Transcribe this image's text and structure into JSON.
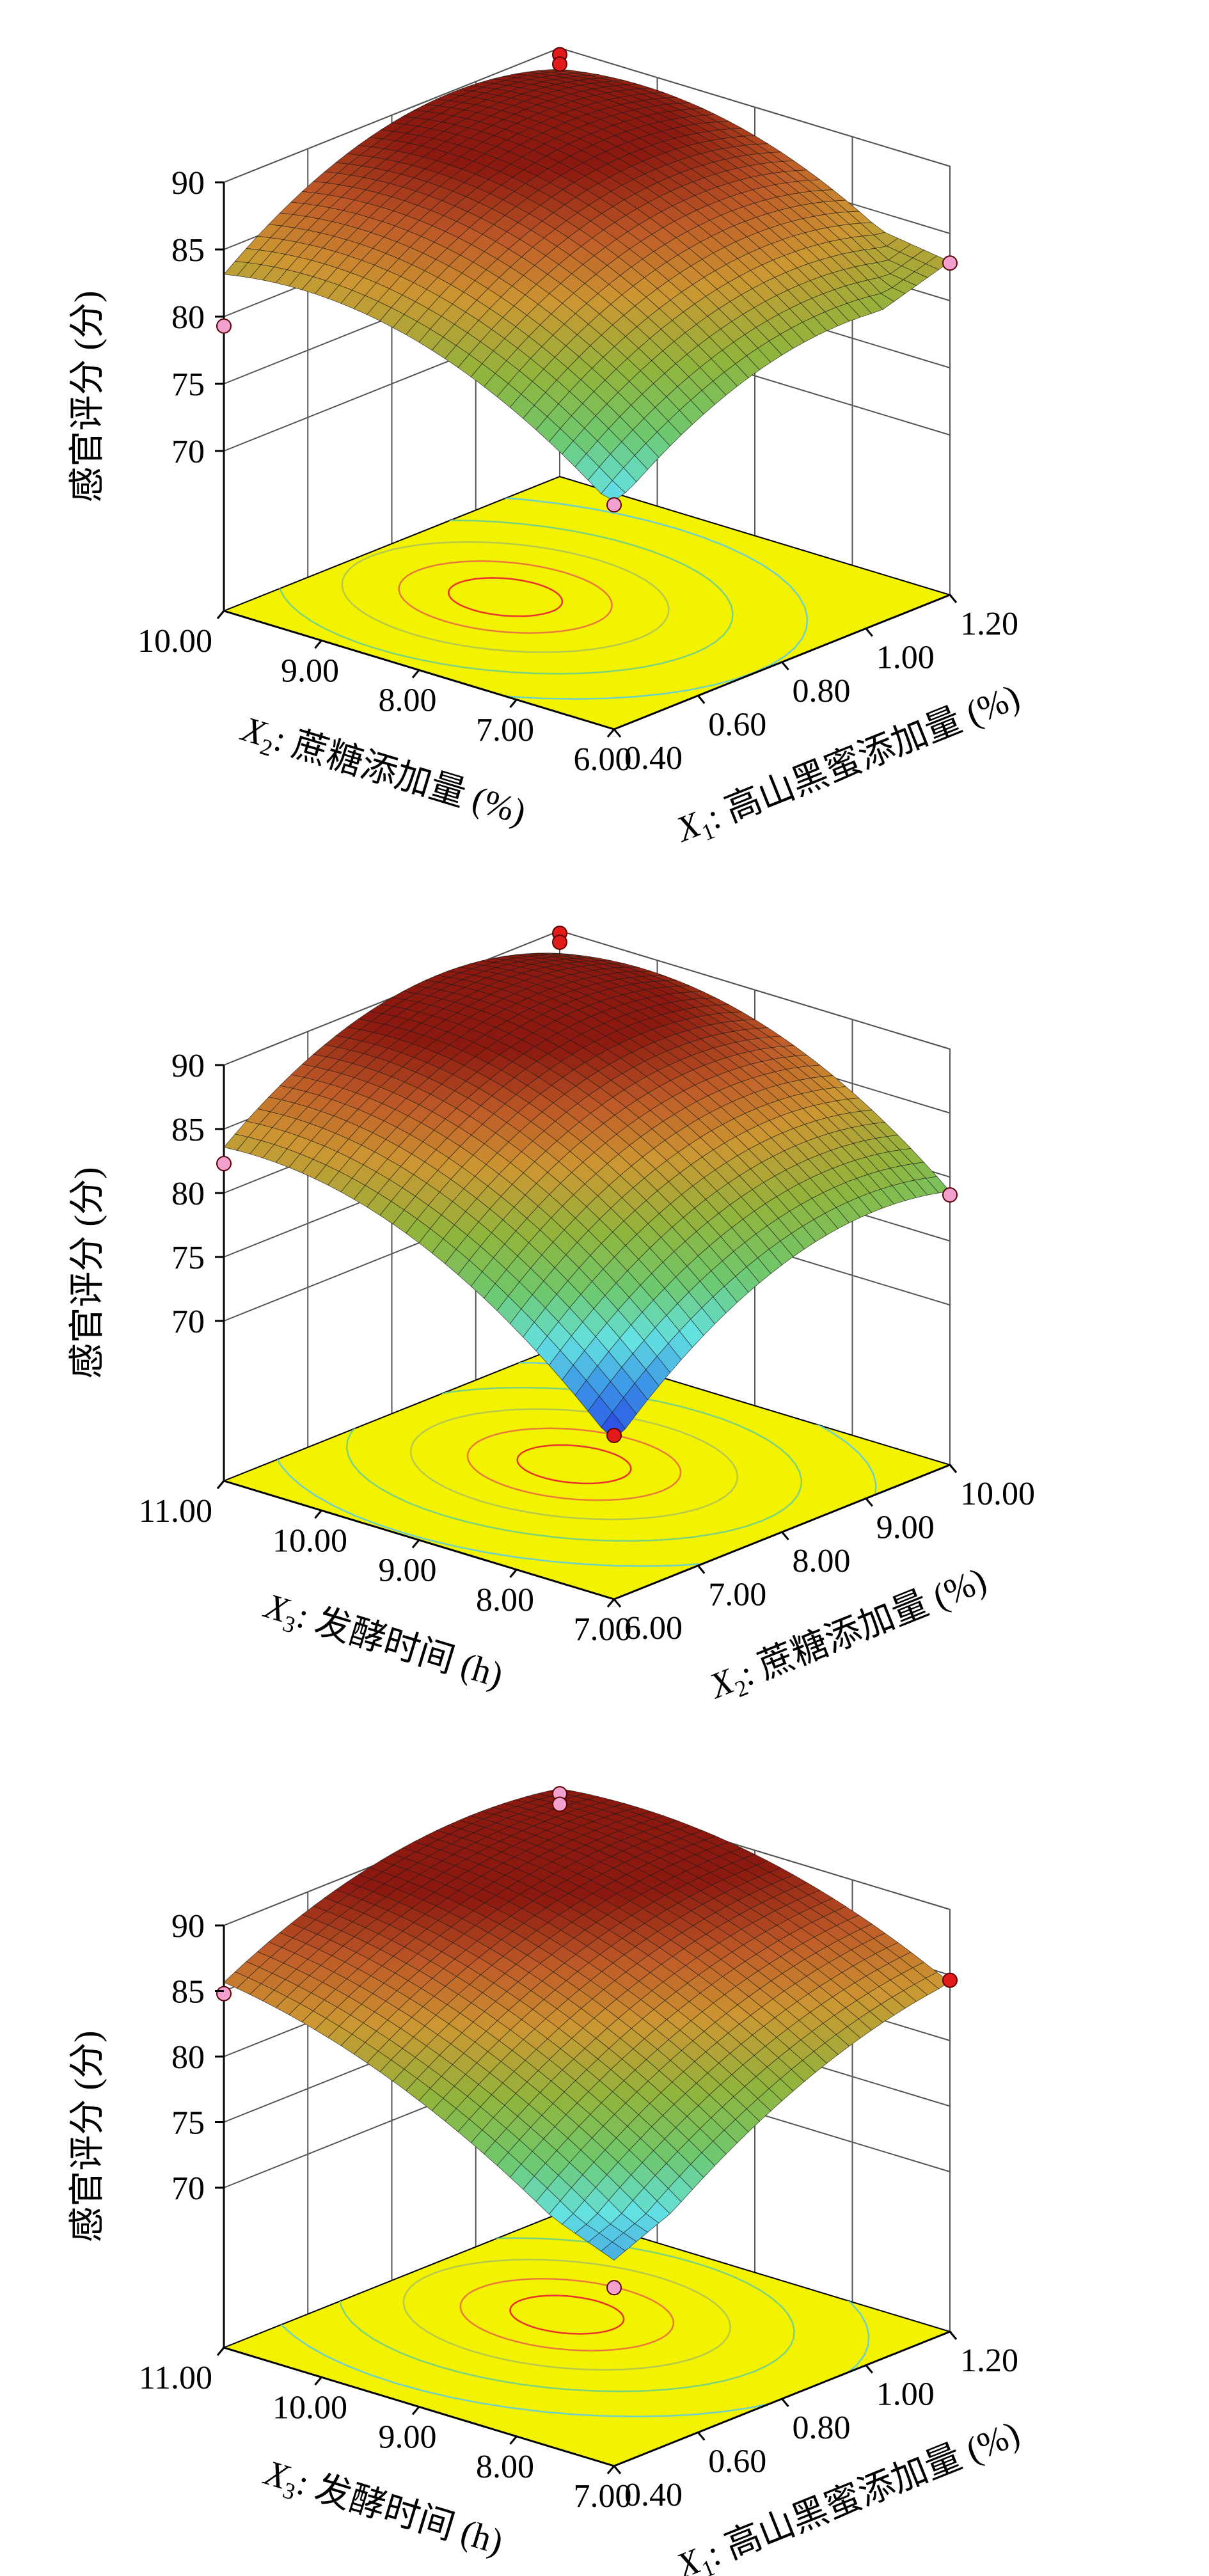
{
  "chart_data": [
    {
      "type": "surface3d",
      "zlabel": "感官评分 (分)",
      "zlim": [
        70,
        90
      ],
      "zticks": [
        "70",
        "75",
        "80",
        "85",
        "90"
      ],
      "left_axis": {
        "variable": "X2",
        "label_var": "X",
        "label_sub": "2",
        "label_text": ": 蔗糖添加量 (%)",
        "range": [
          6.0,
          10.0
        ],
        "ticks": [
          "10.00",
          "9.00",
          "8.00",
          "7.00",
          "6.00"
        ]
      },
      "right_axis": {
        "variable": "X1",
        "label_var": "X",
        "label_sub": "1",
        "label_text": ": 高山黑蜜添加量 (%)",
        "range": [
          0.4,
          1.2
        ],
        "ticks": [
          "0.40",
          "0.60",
          "0.80",
          "1.00",
          "1.20"
        ]
      },
      "corner_values": {
        "front": 75.1,
        "left": 79.6,
        "right": 82.9,
        "back": 87.2
      },
      "peak": {
        "u": 0.64,
        "v": 0.42,
        "z": 89.2
      },
      "design_points": [
        {
          "u": 0,
          "v": 0,
          "z": 74.8
        },
        {
          "u": 1,
          "v": 1,
          "z": 89.5
        },
        {
          "u": 1,
          "v": 1,
          "z": 88.8
        },
        {
          "u": 1,
          "v": 0,
          "z": 79.3
        },
        {
          "u": 0,
          "v": 1,
          "z": 82.8
        }
      ]
    },
    {
      "type": "surface3d",
      "zlabel": "感官评分 (分)",
      "zlim": [
        70,
        90
      ],
      "zticks": [
        "70",
        "75",
        "80",
        "85",
        "90"
      ],
      "left_axis": {
        "variable": "X3",
        "label_var": "X",
        "label_sub": "3",
        "label_text": ": 发酵时间 (h)",
        "range": [
          7.0,
          11.0
        ],
        "ticks": [
          "11.00",
          "10.00",
          "9.00",
          "8.00",
          "7.00"
        ]
      },
      "right_axis": {
        "variable": "X2",
        "label_var": "X",
        "label_sub": "2",
        "label_text": ": 蔗糖添加量 (%)",
        "range": [
          6.0,
          10.0
        ],
        "ticks": [
          "6.00",
          "7.00",
          "8.00",
          "9.00",
          "10.00"
        ]
      },
      "corner_values": {
        "front": 70.0,
        "left": 82.3,
        "right": 78.6,
        "back": 86.3
      },
      "peak": {
        "u": 0.55,
        "v": 0.52,
        "z": 89.0
      },
      "design_points": [
        {
          "u": 0,
          "v": 0,
          "z": 70.3
        },
        {
          "u": 1,
          "v": 1,
          "z": 89.8
        },
        {
          "u": 1,
          "v": 1,
          "z": 89.1
        },
        {
          "u": 1,
          "v": 0,
          "z": 82.3
        },
        {
          "u": 0,
          "v": 1,
          "z": 78.6
        }
      ]
    },
    {
      "type": "surface3d",
      "zlabel": "感官评分 (分)",
      "zlim": [
        70,
        90
      ],
      "zticks": [
        "70",
        "75",
        "80",
        "85",
        "90"
      ],
      "left_axis": {
        "variable": "X3",
        "label_var": "X",
        "label_sub": "3",
        "label_text": ": 发酵时间 (h)",
        "range": [
          7.0,
          11.0
        ],
        "ticks": [
          "11.00",
          "10.00",
          "9.00",
          "8.00",
          "7.00"
        ]
      },
      "right_axis": {
        "variable": "X1",
        "label_var": "X",
        "label_sub": "1",
        "label_text": ": 高山黑蜜添加量 (%)",
        "range": [
          0.4,
          1.2
        ],
        "ticks": [
          "0.40",
          "0.60",
          "0.80",
          "1.00",
          "1.20"
        ]
      },
      "corner_values": {
        "front": 73.5,
        "left": 85.0,
        "right": 84.5,
        "back": 88.0
      },
      "peak": {
        "u": 0.62,
        "v": 0.58,
        "z": 89.4
      },
      "design_points": [
        {
          "u": 0,
          "v": 0,
          "z": 71.4
        },
        {
          "u": 1,
          "v": 1,
          "z": 89.8
        },
        {
          "u": 1,
          "v": 1,
          "z": 89.0
        },
        {
          "u": 1,
          "v": 0,
          "z": 84.8
        },
        {
          "u": 0,
          "v": 1,
          "z": 84.6
        }
      ]
    }
  ]
}
